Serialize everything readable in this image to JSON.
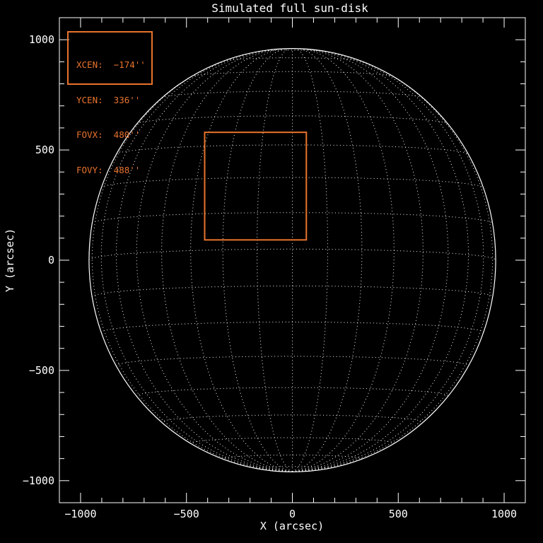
{
  "title": "Simulated full sun-disk",
  "axes": {
    "x": {
      "label": "X (arcsec)",
      "major_ticks": [
        {
          "value": -1000,
          "label": "−1000"
        },
        {
          "value": -500,
          "label": "−500"
        },
        {
          "value": 0,
          "label": "0"
        },
        {
          "value": 500,
          "label": "500"
        },
        {
          "value": 1000,
          "label": "1000"
        }
      ],
      "minor_step": 100
    },
    "y": {
      "label": "Y (arcsec)",
      "major_ticks": [
        {
          "value": 1000,
          "label": "1000"
        },
        {
          "value": 500,
          "label": "500"
        },
        {
          "value": 0,
          "label": "0"
        },
        {
          "value": -500,
          "label": "−500"
        },
        {
          "value": -1000,
          "label": "−1000"
        }
      ],
      "minor_step": 100
    }
  },
  "legend": {
    "lines": [
      {
        "label": "XCEN:",
        "value": "−174''"
      },
      {
        "label": "YCEN:",
        "value": "336''"
      },
      {
        "label": "FOVX:",
        "value": "480''"
      },
      {
        "label": "FOVY:",
        "value": "488''"
      }
    ]
  },
  "chart_data": {
    "type": "line",
    "title": "Simulated full sun-disk",
    "xlabel": "X (arcsec)",
    "ylabel": "Y (arcsec)",
    "xlim": [
      -1100,
      1100
    ],
    "ylim": [
      -1100,
      1100
    ],
    "x_major_tick_values": [
      -1000,
      -500,
      0,
      500,
      1000
    ],
    "y_major_tick_values": [
      1000,
      500,
      0,
      -500,
      -1000
    ],
    "minor_tick_step": 100,
    "grid": {
      "on": true,
      "style": "dotted",
      "description": "heliographic lat/lon grid projected on solar disk",
      "radius_arcsec": 960,
      "b0_deg": -3,
      "step_deg": 10
    },
    "sun_disk": {
      "radius_arcsec": 960,
      "limb_style": "solid"
    },
    "fov_box": {
      "xcen_arcsec": -174,
      "ycen_arcsec": 336,
      "fovx_arcsec": 480,
      "fovy_arcsec": 488
    },
    "colors": {
      "background": "#000000",
      "axes": "#ffffff",
      "grid": "#ffffff",
      "accent": "#e8732d"
    }
  }
}
